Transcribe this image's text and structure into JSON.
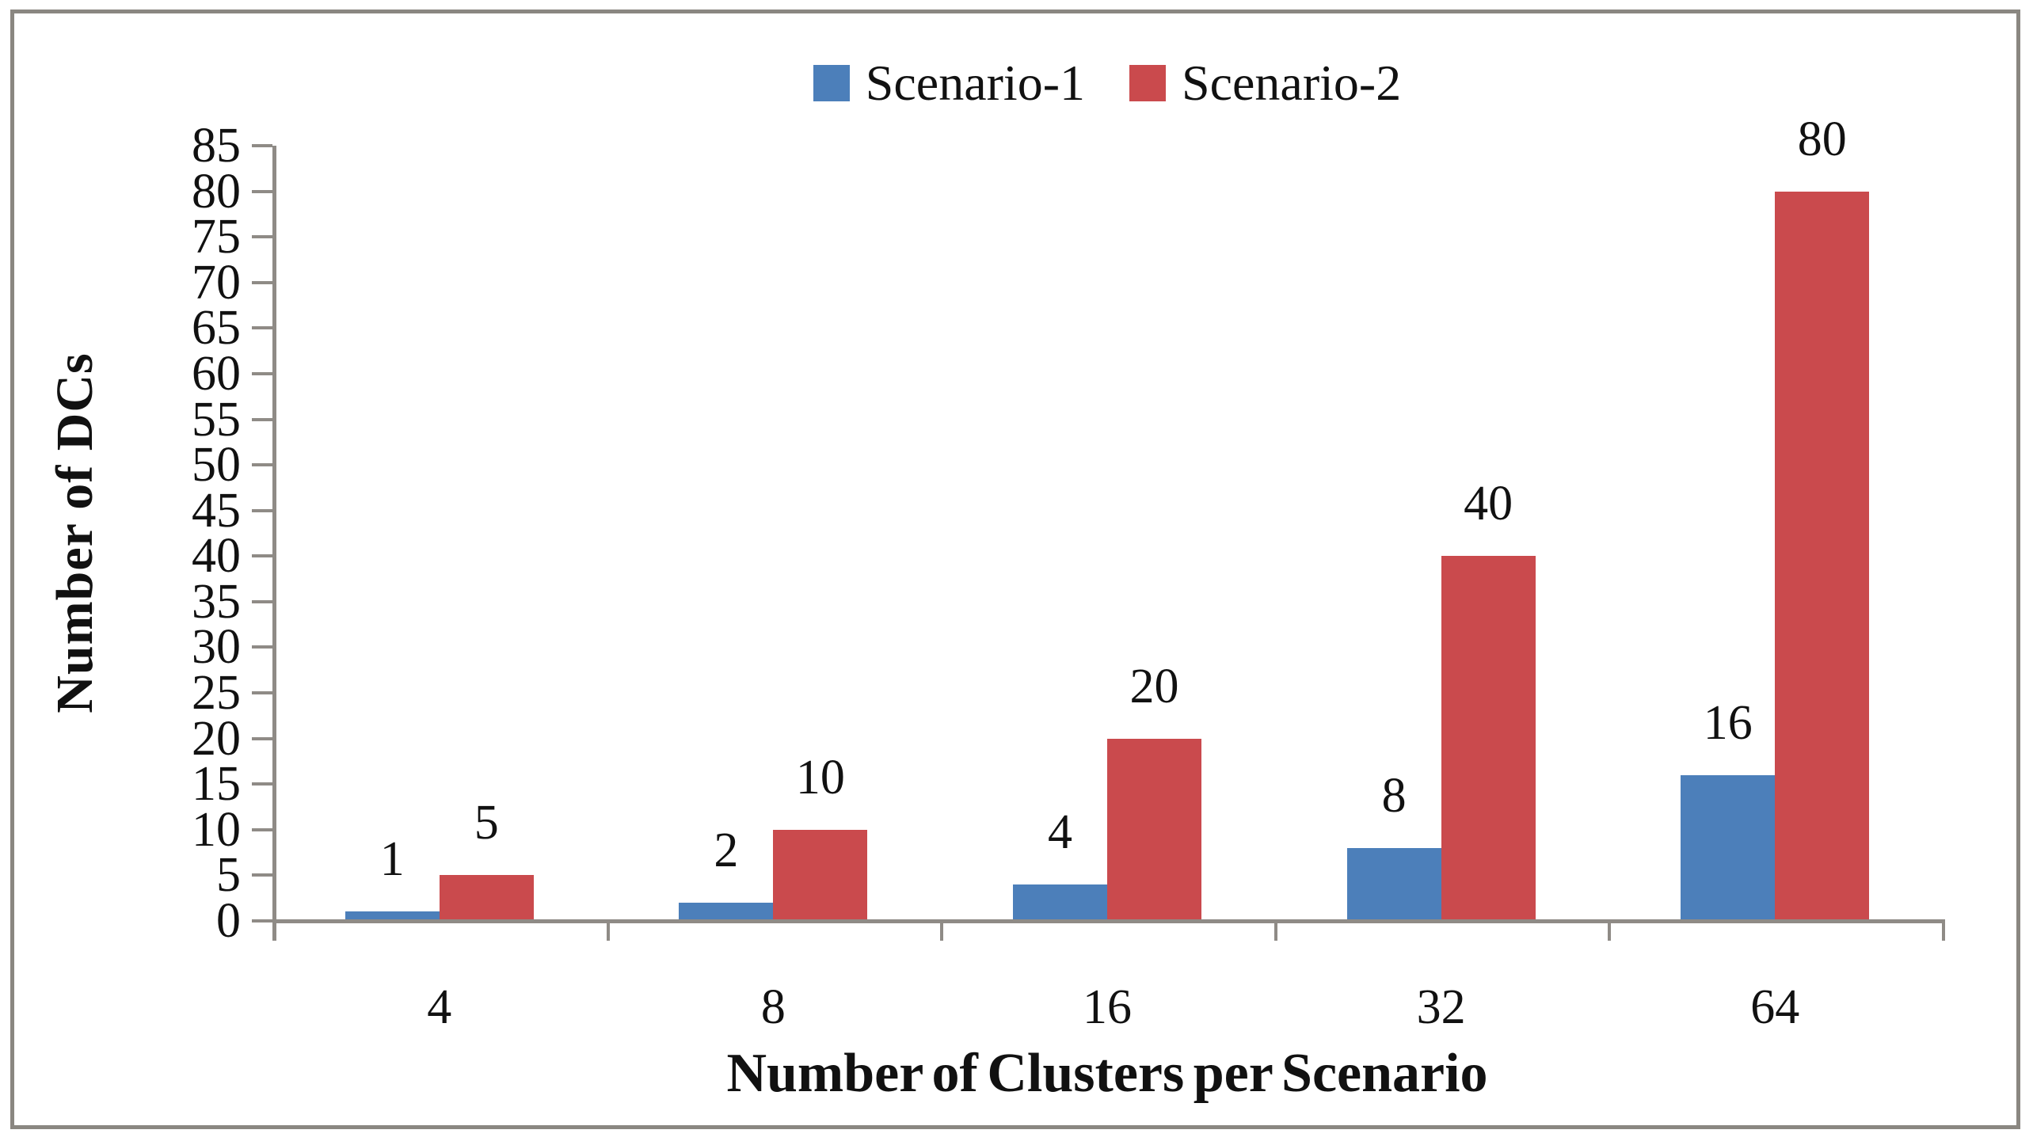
{
  "chart_data": {
    "type": "bar",
    "title": "",
    "categories": [
      "4",
      "8",
      "16",
      "32",
      "64"
    ],
    "series": [
      {
        "name": "Scenario-1",
        "color": "#4c7fba",
        "values": [
          1,
          2,
          4,
          8,
          16
        ]
      },
      {
        "name": "Scenario-2",
        "color": "#ca4a4d",
        "values": [
          5,
          10,
          20,
          40,
          80
        ]
      }
    ],
    "xlabel": "Number of Clusters per Scenario",
    "ylabel": "Number of DCs",
    "ylim": [
      0,
      85
    ],
    "ytick_step": 5,
    "yticks": [
      0,
      5,
      10,
      15,
      20,
      25,
      30,
      35,
      40,
      45,
      50,
      55,
      60,
      65,
      70,
      75,
      80,
      85
    ],
    "grid": false,
    "legend_position": "top",
    "data_labels": true
  },
  "colors": {
    "axis": "#8f8b86",
    "frame": "#8a8781",
    "text": "#111111",
    "background": "#ffffff"
  }
}
